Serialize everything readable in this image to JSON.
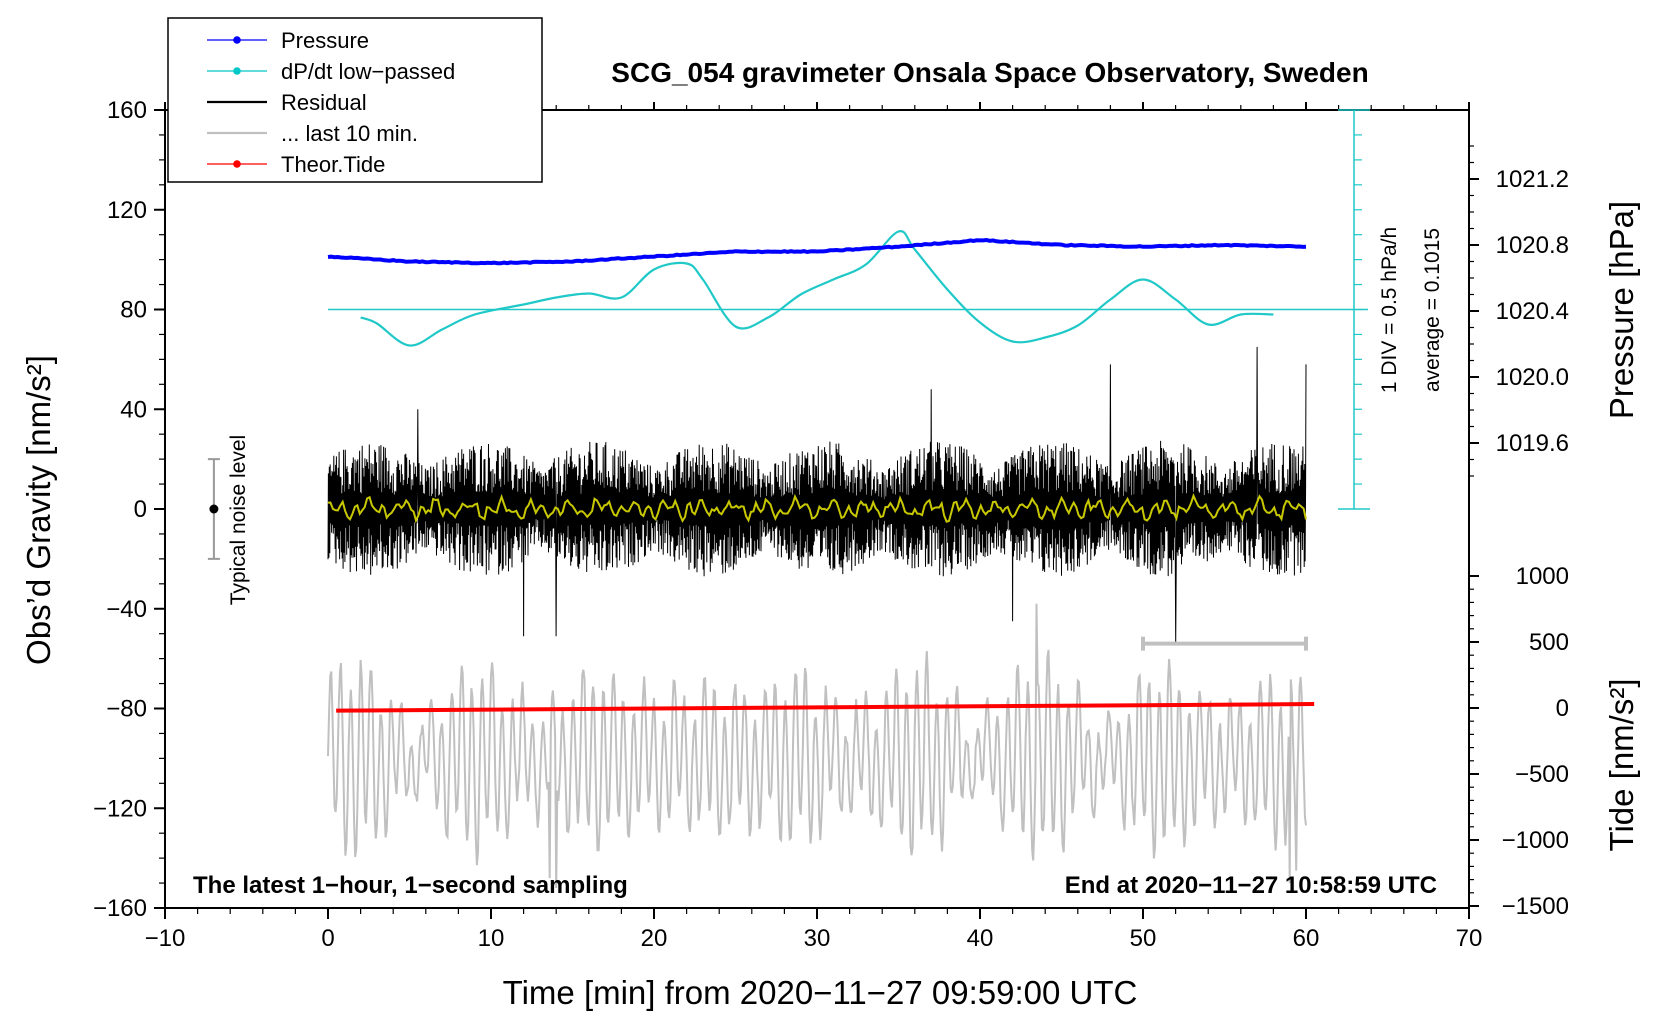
{
  "chart_data": {
    "type": "line",
    "title": "SCG_054 gravimeter Onsala Space Observatory, Sweden",
    "xlabel": "Time [min] from 2020−11−27 09:59:00 UTC",
    "ylabel_left": "Obs’d Gravity [nm/s²]",
    "ylabel_pressure": "Pressure [hPa]",
    "ylabel_tide": "Tide [nm/s²]",
    "xlim": [
      -10,
      70
    ],
    "ylim_left": [
      -160,
      160
    ],
    "x_ticks": [
      -10,
      0,
      10,
      20,
      30,
      40,
      50,
      60,
      70
    ],
    "x_tick_labels": [
      "−10",
      "0",
      "10",
      "20",
      "30",
      "40",
      "50",
      "60",
      "70"
    ],
    "y_ticks_left": [
      160,
      120,
      80,
      40,
      0,
      -40,
      -80,
      -120,
      -160
    ],
    "y_tick_labels_left": [
      "160",
      "120",
      "80",
      "40",
      "0",
      "−40",
      "−80",
      "−120",
      "−160"
    ],
    "pressure_ticks": [
      1021.2,
      1020.8,
      1020.4,
      1020.0,
      1019.6
    ],
    "pressure_tick_labels": [
      "1021.2",
      "1020.8",
      "1020.4",
      "1020.0",
      "1019.6"
    ],
    "tide_ticks": [
      1000,
      500,
      0,
      -500,
      -1000,
      -1500
    ],
    "tide_tick_labels": [
      "1000",
      "500",
      "0",
      "−500",
      "−1000",
      "−1500"
    ],
    "legend": [
      {
        "label": "Pressure",
        "color": "#0000ff",
        "marker": true
      },
      {
        "label": "dP/dt low−passed",
        "color": "#00c8c8",
        "marker": true
      },
      {
        "label": "Residual",
        "color": "#000000",
        "marker": false
      },
      {
        "label": "... last 10 min.",
        "color": "#c0c0c0",
        "marker": false
      },
      {
        "label": "Theor.Tide",
        "color": "#ff0000",
        "marker": true
      }
    ],
    "legend_position": "top-left",
    "colors": {
      "pressure": "#0000ff",
      "dpdt": "#20c8c8",
      "residual": "#000000",
      "residual_smooth": "#c8c800",
      "last10": "#c0c0c0",
      "tide": "#ff0000",
      "noise": "#999999"
    },
    "pressure_series": {
      "name": "Pressure",
      "x": [
        0,
        5,
        10,
        15,
        20,
        25,
        30,
        35,
        40,
        45,
        50,
        55,
        60
      ],
      "values": [
        1020.73,
        1020.7,
        1020.69,
        1020.7,
        1020.73,
        1020.76,
        1020.76,
        1020.79,
        1020.83,
        1020.8,
        1020.79,
        1020.8,
        1020.79
      ]
    },
    "dpdt_series": {
      "name": "dP/dt low−passed",
      "x": [
        2,
        3,
        5,
        7,
        9,
        12,
        14,
        16,
        18,
        20,
        22,
        23,
        25,
        27,
        29,
        31,
        33,
        35,
        36,
        38,
        40,
        42,
        44,
        46,
        48,
        50,
        52,
        54,
        56,
        58
      ],
      "values": [
        -0.08,
        -0.14,
        -0.36,
        -0.2,
        -0.05,
        0.05,
        0.12,
        0.16,
        0.12,
        0.4,
        0.46,
        0.3,
        -0.17,
        -0.08,
        0.15,
        0.3,
        0.45,
        0.78,
        0.6,
        0.2,
        -0.13,
        -0.32,
        -0.28,
        -0.16,
        0.1,
        0.3,
        0.1,
        -0.15,
        -0.05,
        -0.05
      ],
      "baseline": 0.1015,
      "scale_label": "1 DIV = 0.5 hPa/h",
      "average_label": "average = 0.1015"
    },
    "residual_series": {
      "name": "Residual",
      "x_range": [
        0,
        60
      ],
      "typical_amplitude": 25,
      "extremes": [
        {
          "x": 5.5,
          "y": 40
        },
        {
          "x": 12.0,
          "y": -51
        },
        {
          "x": 14.0,
          "y": -51
        },
        {
          "x": 37.0,
          "y": 48
        },
        {
          "x": 42.0,
          "y": -45
        },
        {
          "x": 48.0,
          "y": 58
        },
        {
          "x": 52.0,
          "y": -54
        },
        {
          "x": 57.0,
          "y": 65
        },
        {
          "x": 60.0,
          "y": 58
        }
      ]
    },
    "last10_series": {
      "name": "... last 10 min.",
      "x_range": [
        0,
        60
      ],
      "center": -100,
      "typical_amplitude": 30,
      "extremes": [
        {
          "x": 13.6,
          "y": -148
        },
        {
          "x": 14.0,
          "y": -152
        },
        {
          "x": 43.5,
          "y": -38
        },
        {
          "x": 59.0,
          "y": -150
        },
        {
          "x": 59.4,
          "y": -145
        }
      ]
    },
    "last10_bracket": {
      "x_start": 50,
      "x_end": 60,
      "y": -54
    },
    "tide_series": {
      "name": "Theor.Tide",
      "x": [
        0.5,
        60.5
      ],
      "values": [
        -20,
        30
      ]
    },
    "noise_level": {
      "label": "Typical noise level",
      "x": -7,
      "center": 0,
      "low": -20,
      "high": 20
    },
    "annotation_left": "The latest 1−hour, 1−second sampling",
    "annotation_right": "End at 2020−11−27 10:58:59 UTC"
  }
}
